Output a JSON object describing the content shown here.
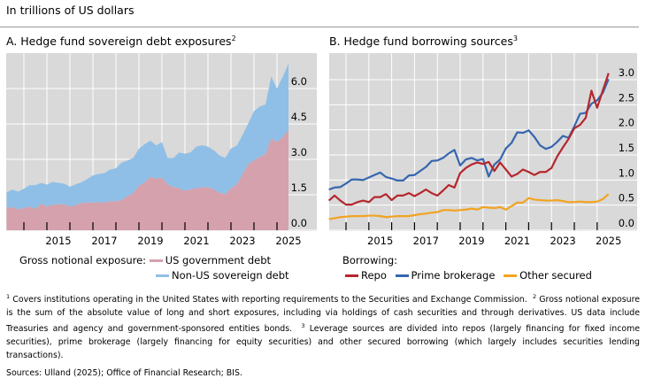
{
  "header": {
    "unit_label": "In trillions of US dollars"
  },
  "colors": {
    "us_gov": "#d4a1ad",
    "non_us": "#8fbfe6",
    "repo": "#b5272d",
    "prime": "#3566b0",
    "other": "#f2a322",
    "plot_bg": "#d9d9d9",
    "grid": "#ffffff"
  },
  "chart_data": [
    {
      "type": "area",
      "stacked": true,
      "title": "A. Hedge fund sovereign debt exposures",
      "title_footnote": "2",
      "legend_title": "Gross notional exposure:",
      "legend_placement": "bottom",
      "ylim": [
        0,
        7.5
      ],
      "yticks": [
        "0.0",
        "1.5",
        "3.0",
        "4.5",
        "6.0"
      ],
      "xticks": [
        "2015",
        "2017",
        "2019",
        "2021",
        "2023",
        "2025"
      ],
      "grid": true,
      "x": [
        "2013Q2",
        "2013Q3",
        "2013Q4",
        "2014Q1",
        "2014Q2",
        "2014Q3",
        "2014Q4",
        "2015Q1",
        "2015Q2",
        "2015Q3",
        "2015Q4",
        "2016Q1",
        "2016Q2",
        "2016Q3",
        "2016Q4",
        "2017Q1",
        "2017Q2",
        "2017Q3",
        "2017Q4",
        "2018Q1",
        "2018Q2",
        "2018Q3",
        "2018Q4",
        "2019Q1",
        "2019Q2",
        "2019Q3",
        "2019Q4",
        "2020Q1",
        "2020Q2",
        "2020Q3",
        "2020Q4",
        "2021Q1",
        "2021Q2",
        "2021Q3",
        "2021Q4",
        "2022Q1",
        "2022Q2",
        "2022Q3",
        "2022Q4",
        "2023Q1",
        "2023Q2",
        "2023Q3",
        "2023Q4",
        "2024Q1",
        "2024Q2",
        "2024Q3",
        "2024Q4",
        "2025Q1",
        "2025Q2",
        "2025Q3"
      ],
      "series": [
        {
          "name": "US government debt",
          "color": "#d4a1ad",
          "values": [
            0.94,
            0.98,
            0.88,
            0.94,
            1.0,
            0.9,
            1.13,
            1.0,
            1.09,
            1.09,
            1.1,
            1.0,
            1.07,
            1.15,
            1.17,
            1.17,
            1.18,
            1.17,
            1.23,
            1.23,
            1.28,
            1.44,
            1.57,
            1.88,
            2.03,
            2.26,
            2.18,
            2.22,
            1.94,
            1.82,
            1.78,
            1.67,
            1.73,
            1.79,
            1.81,
            1.82,
            1.73,
            1.59,
            1.53,
            1.78,
            1.94,
            2.36,
            2.8,
            2.95,
            3.11,
            3.22,
            3.89,
            3.73,
            3.95,
            4.24
          ]
        },
        {
          "name": "Non-US sovereign debt",
          "color": "#8fbfe6",
          "values": [
            0.67,
            0.74,
            0.75,
            0.82,
            0.91,
            1.01,
            0.87,
            0.93,
            0.96,
            0.91,
            0.87,
            0.84,
            0.87,
            0.88,
            0.99,
            1.15,
            1.2,
            1.25,
            1.34,
            1.39,
            1.58,
            1.51,
            1.49,
            1.57,
            1.61,
            1.53,
            1.41,
            1.51,
            1.11,
            1.24,
            1.51,
            1.57,
            1.57,
            1.75,
            1.79,
            1.72,
            1.66,
            1.58,
            1.53,
            1.68,
            1.64,
            1.66,
            1.72,
            2.09,
            2.13,
            2.1,
            2.61,
            2.27,
            2.55,
            2.81
          ]
        }
      ]
    },
    {
      "type": "line",
      "title": "B. Hedge fund borrowing sources",
      "title_footnote": "3",
      "legend_title": "Borrowing:",
      "legend_placement": "bottom",
      "ylim": [
        0,
        3.53
      ],
      "yticks": [
        "0.0",
        "0.5",
        "1.0",
        "1.5",
        "2.0",
        "2.5",
        "3.0"
      ],
      "xticks": [
        "2015",
        "2017",
        "2019",
        "2021",
        "2023",
        "2025"
      ],
      "grid": true,
      "x": [
        "2013Q2",
        "2013Q3",
        "2013Q4",
        "2014Q1",
        "2014Q2",
        "2014Q3",
        "2014Q4",
        "2015Q1",
        "2015Q2",
        "2015Q3",
        "2015Q4",
        "2016Q1",
        "2016Q2",
        "2016Q3",
        "2016Q4",
        "2017Q1",
        "2017Q2",
        "2017Q3",
        "2017Q4",
        "2018Q1",
        "2018Q2",
        "2018Q3",
        "2018Q4",
        "2019Q1",
        "2019Q2",
        "2019Q3",
        "2019Q4",
        "2020Q1",
        "2020Q2",
        "2020Q3",
        "2020Q4",
        "2021Q1",
        "2021Q2",
        "2021Q3",
        "2021Q4",
        "2022Q1",
        "2022Q2",
        "2022Q3",
        "2022Q4",
        "2023Q1",
        "2023Q2",
        "2023Q3",
        "2023Q4",
        "2024Q1",
        "2024Q2",
        "2024Q3",
        "2024Q4",
        "2025Q1",
        "2025Q2",
        "2025Q3"
      ],
      "series": [
        {
          "name": "Repo",
          "color": "#b5272d",
          "values": [
            0.59,
            0.69,
            0.59,
            0.51,
            0.51,
            0.56,
            0.59,
            0.56,
            0.66,
            0.66,
            0.72,
            0.6,
            0.69,
            0.69,
            0.74,
            0.68,
            0.74,
            0.81,
            0.74,
            0.69,
            0.79,
            0.9,
            0.85,
            1.14,
            1.24,
            1.31,
            1.35,
            1.32,
            1.36,
            1.18,
            1.35,
            1.21,
            1.07,
            1.12,
            1.21,
            1.16,
            1.1,
            1.16,
            1.16,
            1.24,
            1.47,
            1.65,
            1.82,
            2.03,
            2.1,
            2.24,
            2.78,
            2.44,
            2.79,
            3.13
          ]
        },
        {
          "name": "Prime brokerage",
          "color": "#3566b0",
          "values": [
            0.81,
            0.85,
            0.86,
            0.93,
            1.01,
            1.01,
            1.0,
            1.05,
            1.1,
            1.15,
            1.06,
            1.03,
            0.99,
            0.99,
            1.09,
            1.1,
            1.18,
            1.26,
            1.38,
            1.39,
            1.44,
            1.53,
            1.6,
            1.29,
            1.41,
            1.44,
            1.39,
            1.42,
            1.07,
            1.31,
            1.41,
            1.63,
            1.74,
            1.95,
            1.94,
            1.99,
            1.86,
            1.69,
            1.62,
            1.66,
            1.76,
            1.88,
            1.84,
            2.07,
            2.32,
            2.34,
            2.52,
            2.59,
            2.74,
            3.01
          ]
        },
        {
          "name": "Other secured",
          "color": "#f2a322",
          "values": [
            0.22,
            0.24,
            0.26,
            0.27,
            0.28,
            0.28,
            0.28,
            0.29,
            0.29,
            0.28,
            0.26,
            0.27,
            0.28,
            0.28,
            0.28,
            0.3,
            0.32,
            0.33,
            0.35,
            0.36,
            0.4,
            0.4,
            0.39,
            0.4,
            0.41,
            0.43,
            0.41,
            0.46,
            0.45,
            0.44,
            0.46,
            0.41,
            0.48,
            0.55,
            0.55,
            0.64,
            0.61,
            0.6,
            0.59,
            0.59,
            0.6,
            0.58,
            0.56,
            0.56,
            0.57,
            0.56,
            0.56,
            0.57,
            0.62,
            0.72
          ]
        }
      ]
    }
  ],
  "footnotes": {
    "n1_mark": "1",
    "n1": "Covers institutions operating in the United States with reporting requirements to the Securities and Exchange Commission.",
    "n2_mark": "2",
    "n2": "Gross notional exposure is the sum of the absolute value of long and short exposures, including via holdings of cash securities and through derivatives. US data include Treasuries and agency and government-sponsored entities bonds.",
    "n3_mark": "3",
    "n3": "Leverage sources are divided into repos (largely financing for fixed income securities), prime brokerage (largely financing for equity securities) and other secured borrowing (which largely includes securities lending transactions)."
  },
  "sources": "Sources: Ulland (2025); Office of Financial Research; BIS."
}
